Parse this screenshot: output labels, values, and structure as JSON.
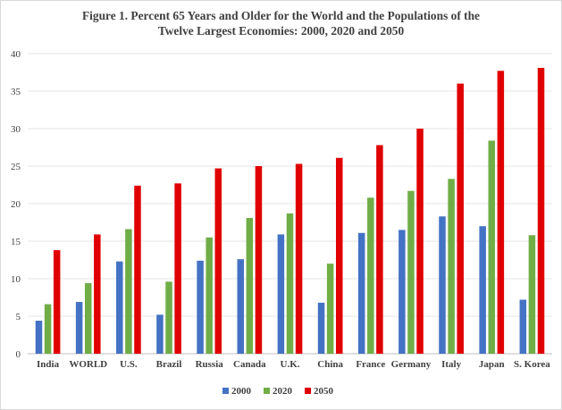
{
  "chart_data": {
    "type": "bar",
    "title_line1": "Figure 1. Percent 65 Years and Older for the World and the Populations of the",
    "title_line2": "Twelve Largest Economies: 2000, 2020 and 2050",
    "categories": [
      "India",
      "WORLD",
      "U.S.",
      "Brazil",
      "Russia",
      "Canada",
      "U.K.",
      "China",
      "France",
      "Germany",
      "Italy",
      "Japan",
      "S. Korea"
    ],
    "series": [
      {
        "name": "2000",
        "color": "#4472c4",
        "values": [
          4.4,
          6.9,
          12.3,
          5.2,
          12.4,
          12.6,
          15.9,
          6.8,
          16.1,
          16.5,
          18.3,
          17.0,
          7.2
        ]
      },
      {
        "name": "2020",
        "color": "#70ad47",
        "values": [
          6.6,
          9.4,
          16.6,
          9.6,
          15.5,
          18.1,
          18.7,
          12.0,
          20.8,
          21.7,
          23.3,
          28.4,
          15.8
        ]
      },
      {
        "name": "2050",
        "color": "#e00000",
        "values": [
          13.8,
          15.9,
          22.4,
          22.7,
          24.7,
          25.0,
          25.3,
          26.1,
          27.8,
          30.0,
          36.0,
          37.7,
          38.1
        ]
      }
    ],
    "yticks": [
      "0",
      "5",
      "10",
      "15",
      "20",
      "25",
      "30",
      "35",
      "40"
    ],
    "ylim": [
      0,
      40
    ],
    "grid": true,
    "legend_position": "bottom"
  }
}
